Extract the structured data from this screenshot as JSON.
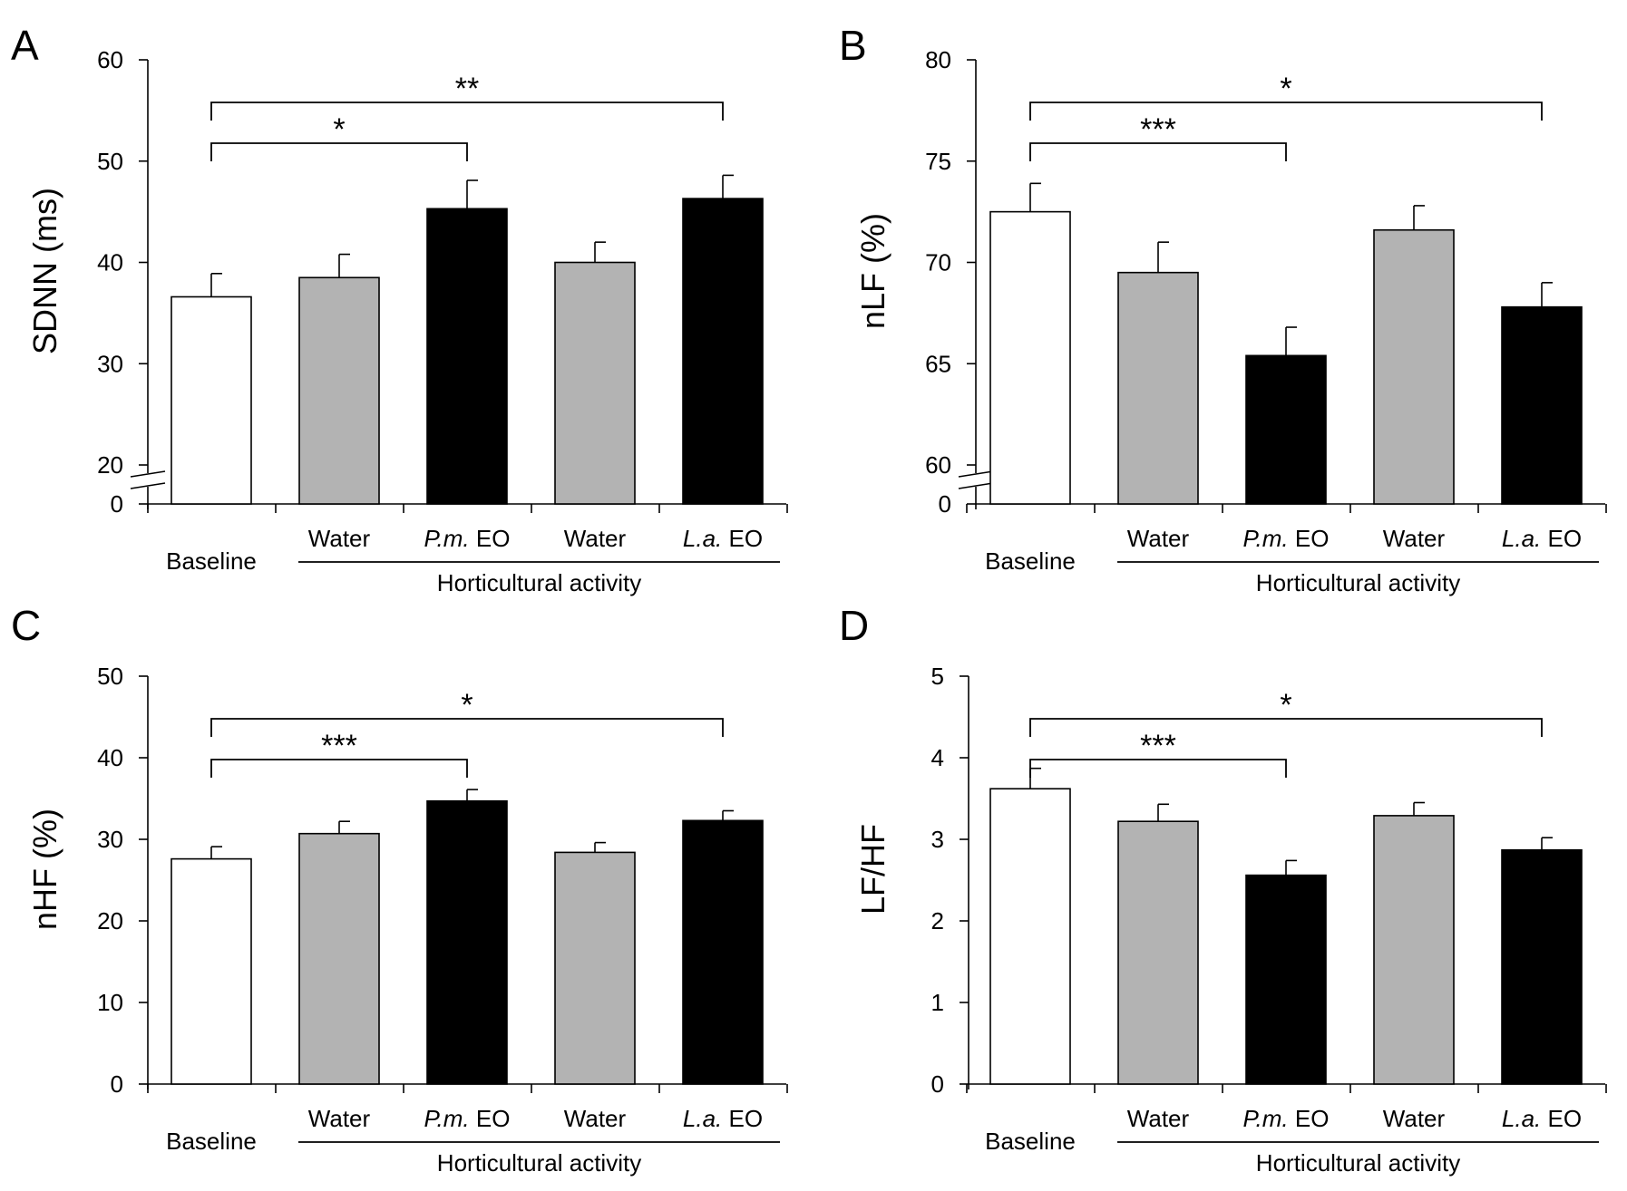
{
  "chart_data": [
    {
      "type": "bar",
      "panel_label": "A",
      "ylabel": "SDNN (ms)",
      "ylim": [
        20,
        60
      ],
      "axis_break": true,
      "yticks": [
        "60",
        "50",
        "40",
        "30",
        "20",
        "0"
      ],
      "categories": [
        "Baseline",
        "Water",
        "P.m. EO",
        "Water",
        "L.a. EO"
      ],
      "group_label": "Horticultural activity",
      "values": [
        36.6,
        38.5,
        45.3,
        40.0,
        46.3
      ],
      "errors": [
        2.3,
        2.3,
        2.8,
        2.0,
        2.3
      ],
      "fills": [
        "#ffffff",
        "#b3b3b3",
        "#000000",
        "#b3b3b3",
        "#000000"
      ],
      "significance": [
        {
          "from": 0,
          "to": 4,
          "label": "**"
        },
        {
          "from": 0,
          "to": 2,
          "label": "*"
        }
      ]
    },
    {
      "type": "bar",
      "panel_label": "B",
      "ylabel": "nLF (%)",
      "ylim": [
        60,
        80
      ],
      "axis_break": true,
      "yticks": [
        "80",
        "75",
        "70",
        "65",
        "60",
        "0"
      ],
      "categories": [
        "Baseline",
        "Water",
        "P.m. EO",
        "Water",
        "L.a. EO"
      ],
      "group_label": "Horticultural activity",
      "values": [
        72.5,
        69.5,
        65.4,
        71.6,
        67.8
      ],
      "errors": [
        1.4,
        1.5,
        1.4,
        1.2,
        1.2
      ],
      "fills": [
        "#ffffff",
        "#b3b3b3",
        "#000000",
        "#b3b3b3",
        "#000000"
      ],
      "significance": [
        {
          "from": 0,
          "to": 4,
          "label": "*"
        },
        {
          "from": 0,
          "to": 2,
          "label": "***"
        }
      ]
    },
    {
      "type": "bar",
      "panel_label": "C",
      "ylabel": "nHF (%)",
      "ylim": [
        0,
        50
      ],
      "axis_break": false,
      "yticks": [
        "50",
        "40",
        "30",
        "20",
        "10",
        "0"
      ],
      "categories": [
        "Baseline",
        "Water",
        "P.m. EO",
        "Water",
        "L.a. EO"
      ],
      "group_label": "Horticultural activity",
      "values": [
        27.6,
        30.7,
        34.7,
        28.4,
        32.3
      ],
      "errors": [
        1.5,
        1.5,
        1.4,
        1.2,
        1.2
      ],
      "fills": [
        "#ffffff",
        "#b3b3b3",
        "#000000",
        "#b3b3b3",
        "#000000"
      ],
      "significance": [
        {
          "from": 0,
          "to": 4,
          "label": "*"
        },
        {
          "from": 0,
          "to": 2,
          "label": "***"
        }
      ]
    },
    {
      "type": "bar",
      "panel_label": "D",
      "ylabel": "LF/HF",
      "ylim": [
        0,
        5
      ],
      "axis_break": false,
      "yticks": [
        "5",
        "4",
        "3",
        "2",
        "1",
        "0"
      ],
      "categories": [
        "Baseline",
        "Water",
        "P.m. EO",
        "Water",
        "L.a. EO"
      ],
      "group_label": "Horticultural activity",
      "values": [
        3.62,
        3.22,
        2.56,
        3.29,
        2.87
      ],
      "errors": [
        0.25,
        0.21,
        0.18,
        0.16,
        0.15
      ],
      "fills": [
        "#ffffff",
        "#b3b3b3",
        "#000000",
        "#b3b3b3",
        "#000000"
      ],
      "significance": [
        {
          "from": 0,
          "to": 4,
          "label": "*"
        },
        {
          "from": 0,
          "to": 2,
          "label": "***"
        }
      ]
    }
  ]
}
